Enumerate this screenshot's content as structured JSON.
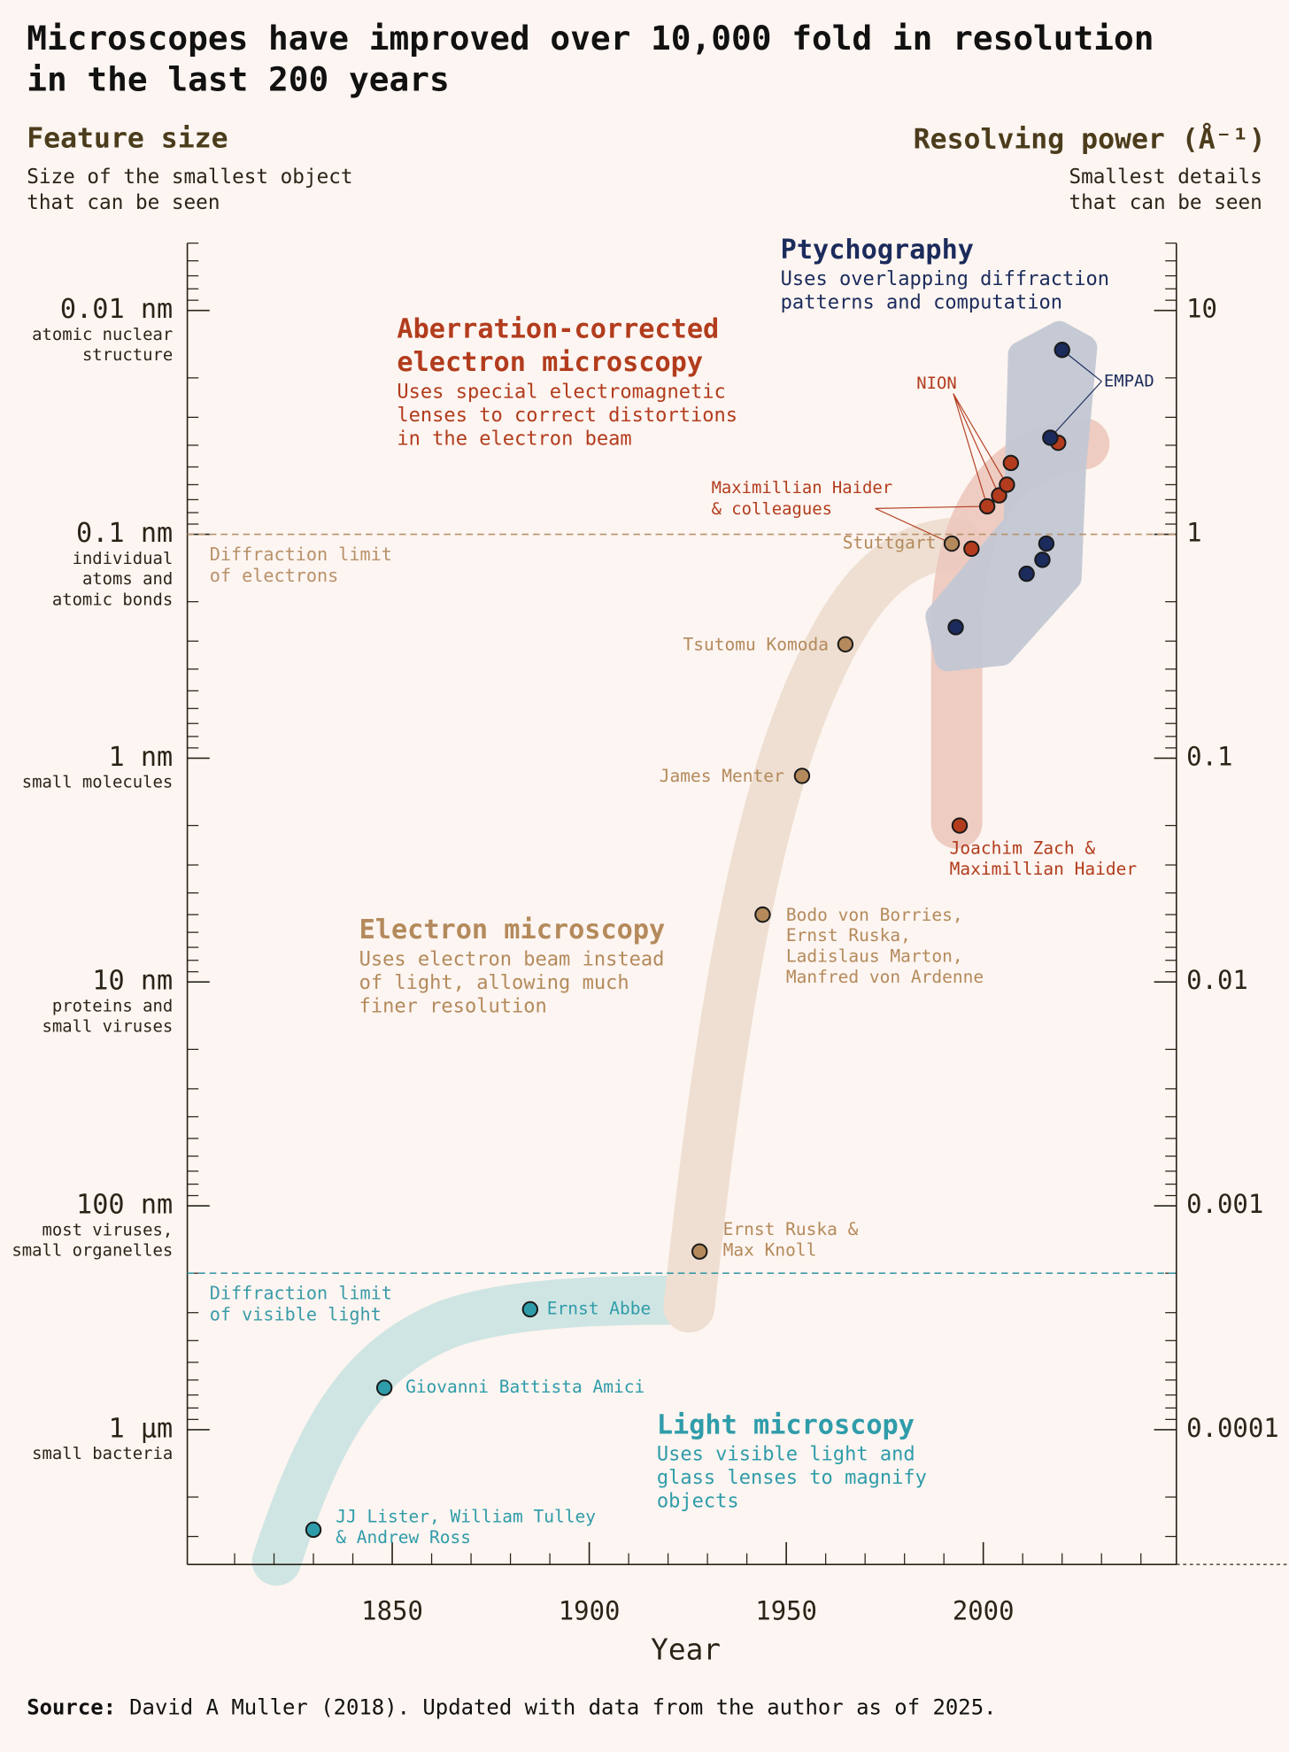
{
  "chart_data": {
    "type": "scatter",
    "title": [
      "Microscopes have improved over 10,000 fold in resolution",
      "in the last 200 years"
    ],
    "y_title": "Feature size",
    "y_subtitle": [
      "Size of the smallest object",
      "that can be seen"
    ],
    "y2_title": "Resolving power (Å⁻¹)",
    "y2_subtitle": [
      "Smallest details",
      "that can be seen"
    ],
    "x_title": "Year",
    "source_label": "Source:",
    "source": "David A Muller (2018). Updated with data from the author as of 2025.",
    "log_y": true,
    "xlim": [
      1798,
      2049
    ],
    "xticks": [
      1850,
      1900,
      1950,
      2000
    ],
    "xminor": [
      1810,
      1820,
      1830,
      1840,
      1860,
      1870,
      1880,
      1890,
      1910,
      1920,
      1930,
      1940,
      1960,
      1970,
      1980,
      1990,
      2010,
      2020,
      2030,
      2040
    ],
    "ylim": [
      4000,
      0.005
    ],
    "yticks": [
      {
        "value": 0.01,
        "label": "0.01 nm"
      },
      {
        "value": 0.1,
        "label": "0.1 nm"
      },
      {
        "value": 1,
        "label": "1 nm"
      },
      {
        "value": 10,
        "label": "10 nm"
      },
      {
        "value": 100,
        "label": "100 nm"
      },
      {
        "value": 1000,
        "label": "1 µm"
      }
    ],
    "ytick_notes": [
      [
        "atomic nuclear",
        "structure"
      ],
      [
        "individual",
        "atoms and",
        "atomic bonds"
      ],
      [
        "small molecules"
      ],
      [
        "proteins and",
        "small viruses"
      ],
      [
        "most viruses,",
        "small organelles"
      ],
      [
        "small bacteria"
      ]
    ],
    "yminor": [
      0.005,
      0.006,
      0.007,
      0.008,
      0.009,
      0.02,
      0.03,
      0.04,
      0.05,
      0.06,
      0.07,
      0.08,
      0.09,
      0.2,
      0.3,
      0.4,
      0.5,
      0.6,
      0.7,
      0.8,
      0.9,
      2,
      3,
      4,
      5,
      6,
      7,
      8,
      9,
      20,
      30,
      40,
      50,
      60,
      70,
      80,
      90,
      200,
      300,
      400,
      500,
      600,
      700,
      800,
      900,
      2000,
      3000,
      4000
    ],
    "y2lim": [
      2.5e-05,
      20
    ],
    "y2ticks": [
      10,
      1,
      0.1,
      0.01,
      0.001,
      0.0001
    ],
    "reference_lines": [
      {
        "value": 0.1,
        "label": [
          "Diffraction limit",
          "of electrons"
        ],
        "color": "#b8916a"
      },
      {
        "value": 200,
        "label": [
          "Diffraction limit",
          "of visible light"
        ],
        "color": "#3a9ba8"
      }
    ],
    "series": [
      {
        "name": [
          "Light microscopy"
        ],
        "description": [
          "Uses visible light and",
          "glass lenses to magnify",
          "objects"
        ],
        "color": "#2f9caa",
        "band": "#cfe5e3",
        "x": [
          1830,
          1848,
          1885
        ],
        "values": [
          2800,
          650,
          290
        ],
        "labels": [
          [
            "JJ Lister, William Tulley",
            "& Andrew Ross"
          ],
          [
            "Giovanni Battista Amici"
          ],
          [
            "Ernst Abbe"
          ]
        ]
      },
      {
        "name": [
          "Electron microscopy"
        ],
        "description": [
          "Uses electron beam instead",
          "of light, allowing much",
          "finer resolution"
        ],
        "color": "#b48a5c",
        "band": "#eedfd2",
        "x": [
          1928,
          1944,
          1954,
          1965,
          1992
        ],
        "values": [
          160,
          5,
          1.2,
          0.31,
          0.11
        ],
        "labels": [
          [
            "Ernst Ruska &",
            "Max Knoll"
          ],
          [
            "Bodo von Borries,",
            "Ernst Ruska,",
            "Ladislaus Marton,",
            "Manfred von Ardenne"
          ],
          [
            "James Menter"
          ],
          [
            "Tsutomu Komoda"
          ],
          [
            "Stuttgart"
          ]
        ]
      },
      {
        "name": [
          "Aberration-corrected",
          "electron microscopy"
        ],
        "description": [
          "Uses special electromagnetic",
          "lenses to correct distortions",
          "in the electron beam"
        ],
        "color": "#b23c1d",
        "band": "#ecc8bd",
        "x": [
          1994,
          1997,
          2001,
          2004,
          2006,
          2007,
          2019
        ],
        "values": [
          2,
          0.116,
          0.075,
          0.067,
          0.06,
          0.048,
          0.039
        ],
        "labels": [
          [
            "Joachim Zach &",
            "Maximillian Haider"
          ],
          null,
          null,
          null,
          null,
          null,
          null
        ]
      },
      {
        "name": [
          "Ptychography"
        ],
        "description": [
          "Uses overlapping diffraction",
          "patterns and computation"
        ],
        "color": "#1b2b5c",
        "band": "#c3c8d4",
        "x": [
          1993,
          2011,
          2015,
          2016,
          2017,
          2020
        ],
        "values": [
          0.26,
          0.15,
          0.13,
          0.11,
          0.037,
          0.015
        ],
        "labels": [
          null,
          null,
          null,
          null,
          null,
          null
        ]
      }
    ],
    "annotations": [
      {
        "text": [
          "NION"
        ],
        "color": "#b23c1d"
      },
      {
        "text": [
          "EMPAD"
        ],
        "color": "#1b2b5c"
      },
      {
        "text": [
          "Maximillian Haider",
          "& colleagues"
        ],
        "color": "#b23c1d"
      }
    ]
  }
}
